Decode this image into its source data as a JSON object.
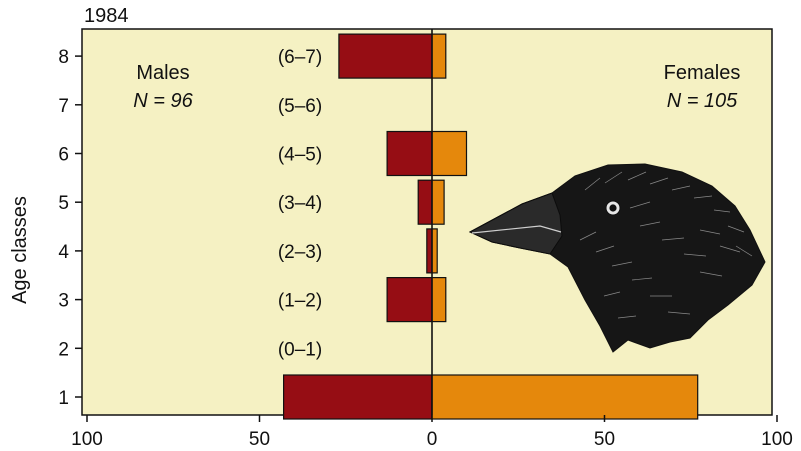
{
  "chart_data": {
    "type": "bar",
    "title": "1984",
    "ylabel": "Age classes",
    "xlim_left": [
      0,
      100
    ],
    "xlim_right": [
      0,
      100
    ],
    "x_ticks": [
      "100",
      "50",
      "0",
      "50",
      "100"
    ],
    "y_ticks": [
      "1",
      "2",
      "3",
      "4",
      "5",
      "6",
      "7",
      "8"
    ],
    "categories": [
      1,
      2,
      3,
      4,
      5,
      6,
      7,
      8
    ],
    "interval_labels": [
      "",
      "(0–1)",
      "(1–2)",
      "(2–3)",
      "(3–4)",
      "(4–5)",
      "(5–6)",
      "(6–7)"
    ],
    "series": [
      {
        "name": "Males",
        "side": "left",
        "values": [
          43,
          0,
          13,
          1.5,
          4,
          13,
          0,
          27
        ]
      },
      {
        "name": "Females",
        "side": "right",
        "values": [
          77,
          0,
          4,
          1.5,
          3.5,
          10,
          0,
          4
        ]
      }
    ],
    "groups": {
      "males": {
        "name": "Males",
        "n": "N = 96"
      },
      "females": {
        "name": "Females",
        "n": "N = 105"
      }
    },
    "colors": {
      "background": "#f5f1c3",
      "males": "#960d14",
      "females": "#e5880c"
    },
    "illustration": "finch-head"
  }
}
